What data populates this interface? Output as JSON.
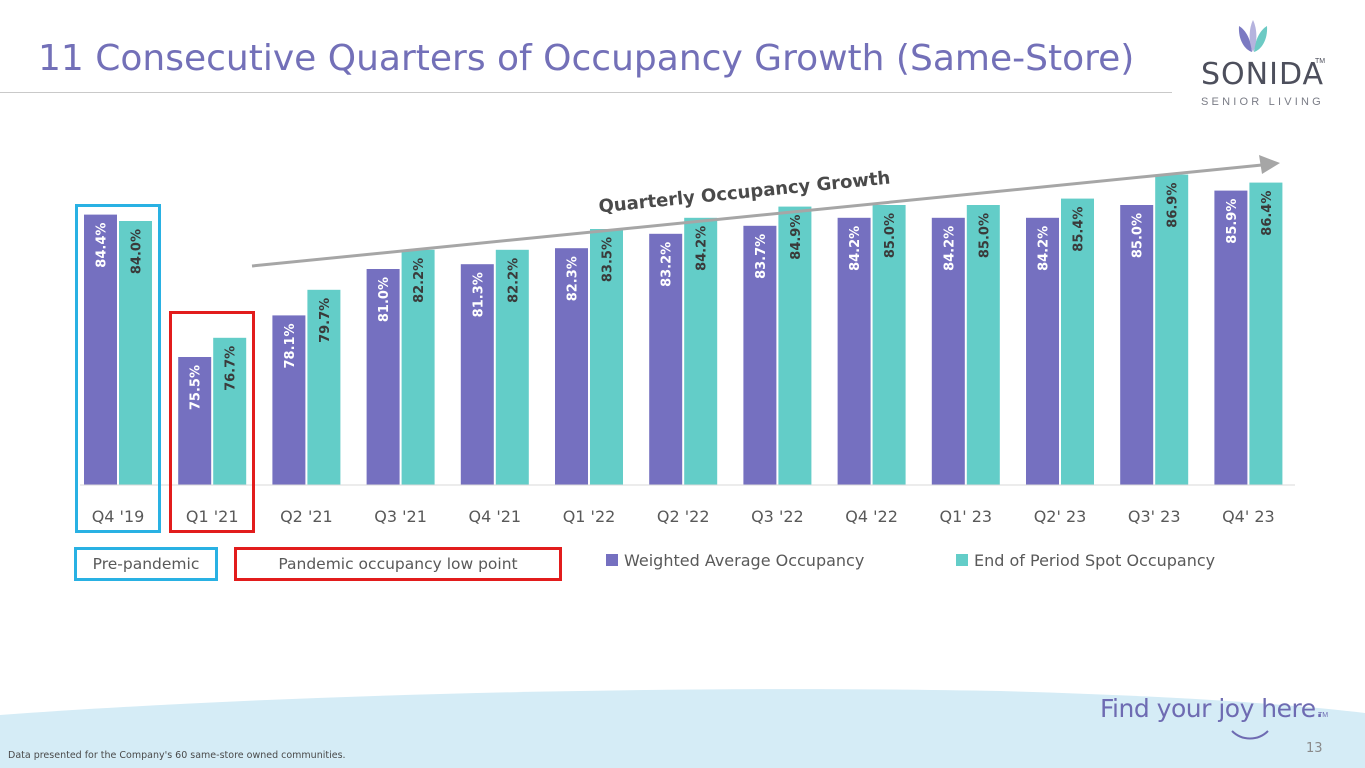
{
  "header": {
    "title": "11 Consecutive Quarters of Occupancy Growth (Same-Store)"
  },
  "logo": {
    "brand": "SONIDA",
    "tm": "TM",
    "subtitle": "SENIOR LIVING"
  },
  "callouts": {
    "pre_pandemic": "Pre-pandemic",
    "pandemic_low": "Pandemic occupancy low point"
  },
  "annotation": {
    "growth_label": "Quarterly Occupancy Growth"
  },
  "footer": {
    "tagline": "Find your joy here.",
    "tagline_tm": "TM",
    "footnote": "Data presented for the Company's 60 same-store owned communities.",
    "page_number": "13"
  },
  "colors": {
    "weighted": "#7570c0",
    "spot": "#63cdc8",
    "title": "#7370b8",
    "pre_pandemic_box": "#29b1e3",
    "pandemic_box": "#e21c1c",
    "footer_wave": "#d5ecf6"
  },
  "chart_data": {
    "type": "bar",
    "title": "",
    "xlabel": "",
    "ylabel": "",
    "categories": [
      "Q4 '19",
      "Q1 '21",
      "Q2 '21",
      "Q3 '21",
      "Q4 '21",
      "Q1 '22",
      "Q2 '22",
      "Q3 '22",
      "Q4 '22",
      "Q1' 23",
      "Q2' 23",
      "Q3' 23",
      "Q4' 23"
    ],
    "series": [
      {
        "name": "Weighted Average Occupancy",
        "values": [
          84.4,
          75.5,
          78.1,
          81.0,
          81.3,
          82.3,
          83.2,
          83.7,
          84.2,
          84.2,
          84.2,
          85.0,
          85.9
        ],
        "labels": [
          "84.4%",
          "75.5%",
          "78.1%",
          "81.0%",
          "81.3%",
          "82.3%",
          "83.2%",
          "83.7%",
          "84.2%",
          "84.2%",
          "84.2%",
          "85.0%",
          "85.9%"
        ]
      },
      {
        "name": "End of Period Spot Occupancy",
        "values": [
          84.0,
          76.7,
          79.7,
          82.2,
          82.2,
          83.5,
          84.2,
          84.9,
          85.0,
          85.0,
          85.4,
          86.9,
          86.4
        ],
        "labels": [
          "84.0%",
          "76.7%",
          "79.7%",
          "82.2%",
          "82.2%",
          "83.5%",
          "84.2%",
          "84.9%",
          "85.0%",
          "85.0%",
          "85.4%",
          "86.9%",
          "86.4%"
        ]
      }
    ],
    "ylim": [
      67.5,
      87.5
    ],
    "grid": false,
    "legend_position": "bottom"
  }
}
